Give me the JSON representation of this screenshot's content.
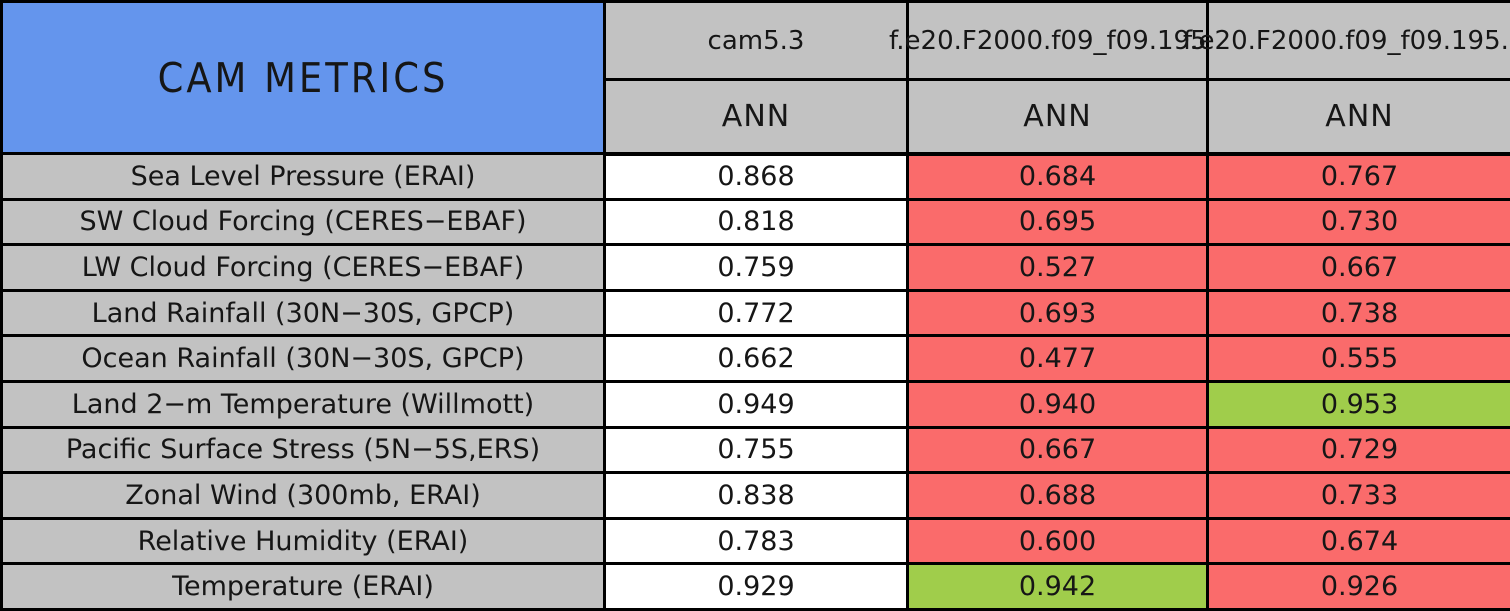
{
  "header": {
    "title": "CAM METRICS",
    "models": [
      "cam5.3",
      "f.e20.F2000.f09_f09.195",
      "f.e20.F2000.f09_f09.195."
    ],
    "season_labels": [
      "ANN",
      "ANN",
      "ANN"
    ]
  },
  "rows": [
    {
      "metric": "Sea Level Pressure (ERAI)",
      "values": [
        "0.868",
        "0.684",
        "0.767"
      ],
      "colors": [
        "white",
        "red",
        "red"
      ]
    },
    {
      "metric": "SW Cloud Forcing (CERES−EBAF)",
      "values": [
        "0.818",
        "0.695",
        "0.730"
      ],
      "colors": [
        "white",
        "red",
        "red"
      ]
    },
    {
      "metric": "LW Cloud Forcing (CERES−EBAF)",
      "values": [
        "0.759",
        "0.527",
        "0.667"
      ],
      "colors": [
        "white",
        "red",
        "red"
      ]
    },
    {
      "metric": "Land Rainfall (30N−30S, GPCP)",
      "values": [
        "0.772",
        "0.693",
        "0.738"
      ],
      "colors": [
        "white",
        "red",
        "red"
      ]
    },
    {
      "metric": "Ocean Rainfall (30N−30S, GPCP)",
      "values": [
        "0.662",
        "0.477",
        "0.555"
      ],
      "colors": [
        "white",
        "red",
        "red"
      ]
    },
    {
      "metric": "Land 2−m Temperature (Willmott)",
      "values": [
        "0.949",
        "0.940",
        "0.953"
      ],
      "colors": [
        "white",
        "red",
        "green"
      ]
    },
    {
      "metric": "Pacific Surface Stress (5N−5S,ERS)",
      "values": [
        "0.755",
        "0.667",
        "0.729"
      ],
      "colors": [
        "white",
        "red",
        "red"
      ]
    },
    {
      "metric": "Zonal Wind (300mb, ERAI)",
      "values": [
        "0.838",
        "0.688",
        "0.733"
      ],
      "colors": [
        "white",
        "red",
        "red"
      ]
    },
    {
      "metric": "Relative Humidity (ERAI)",
      "values": [
        "0.783",
        "0.600",
        "0.674"
      ],
      "colors": [
        "white",
        "red",
        "red"
      ]
    },
    {
      "metric": "Temperature (ERAI)",
      "values": [
        "0.929",
        "0.942",
        "0.926"
      ],
      "colors": [
        "white",
        "green",
        "red"
      ]
    }
  ],
  "colors": {
    "title_blue": "#6495ED",
    "header_gray": "#C2C2C2",
    "flag_red": "#FA6B6B",
    "flag_green": "#A0CD4B",
    "baseline_white": "#FFFFFF",
    "border_black": "#000000"
  },
  "chart_data": {
    "type": "table",
    "title": "CAM METRICS",
    "categories": [
      "Sea Level Pressure (ERAI)",
      "SW Cloud Forcing (CERES−EBAF)",
      "LW Cloud Forcing (CERES−EBAF)",
      "Land Rainfall (30N−30S, GPCP)",
      "Ocean Rainfall (30N−30S, GPCP)",
      "Land 2−m Temperature (Willmott)",
      "Pacific Surface Stress (5N−5S,ERS)",
      "Zonal Wind (300mb, ERAI)",
      "Relative Humidity (ERAI)",
      "Temperature (ERAI)"
    ],
    "series": [
      {
        "name": "cam5.3 ANN",
        "values": [
          0.868,
          0.818,
          0.759,
          0.772,
          0.662,
          0.949,
          0.755,
          0.838,
          0.783,
          0.929
        ]
      },
      {
        "name": "f.e20.F2000.f09_f09.195 ANN",
        "values": [
          0.684,
          0.695,
          0.527,
          0.693,
          0.477,
          0.94,
          0.667,
          0.688,
          0.6,
          0.942
        ]
      },
      {
        "name": "f.e20.F2000.f09_f09.195. ANN",
        "values": [
          0.767,
          0.73,
          0.667,
          0.738,
          0.555,
          0.953,
          0.729,
          0.733,
          0.674,
          0.926
        ]
      }
    ],
    "cell_flags": [
      [
        "white",
        "red",
        "red"
      ],
      [
        "white",
        "red",
        "red"
      ],
      [
        "white",
        "red",
        "red"
      ],
      [
        "white",
        "red",
        "red"
      ],
      [
        "white",
        "red",
        "red"
      ],
      [
        "white",
        "red",
        "green"
      ],
      [
        "white",
        "red",
        "red"
      ],
      [
        "white",
        "red",
        "red"
      ],
      [
        "white",
        "red",
        "red"
      ],
      [
        "white",
        "green",
        "red"
      ]
    ]
  }
}
